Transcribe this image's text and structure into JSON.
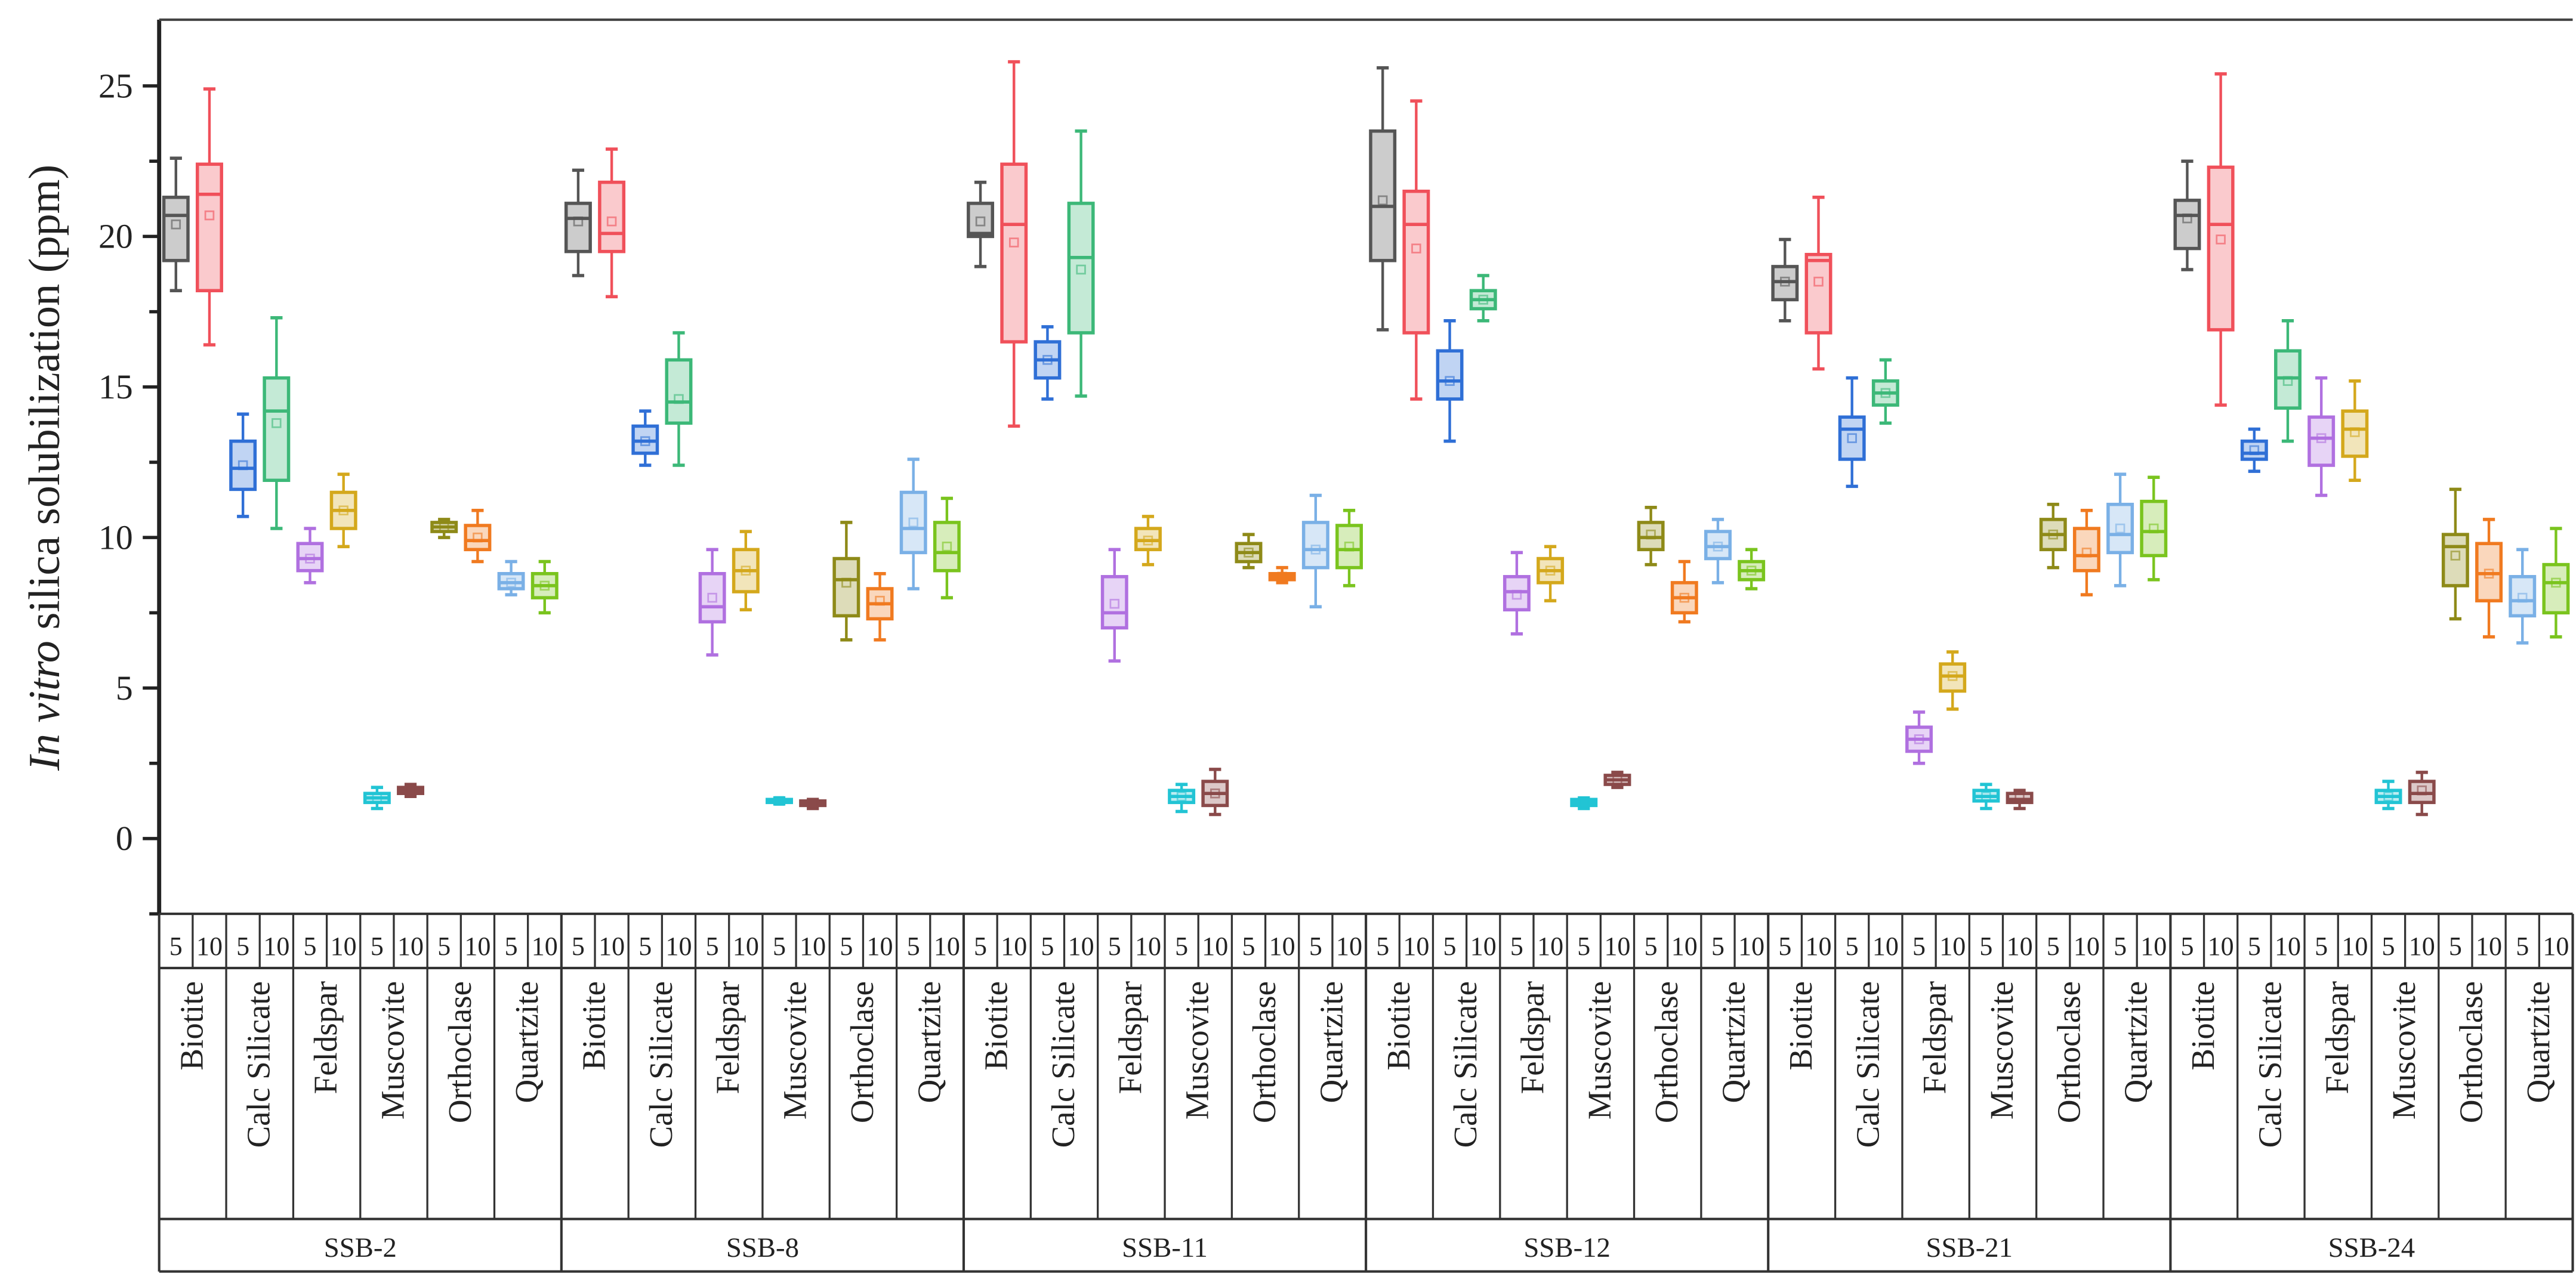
{
  "chart_data": {
    "type": "box",
    "ylabel_italic": "In vitro",
    "ylabel_rest": " silica solubilization (ppm)",
    "ylim": [
      -2.5,
      27.2
    ],
    "yticks": [
      "0",
      "5",
      "10",
      "15",
      "20",
      "25"
    ],
    "ytick_values": [
      0,
      5,
      10,
      15,
      20,
      25
    ],
    "minor_ytick_values": [
      -2.5,
      2.5,
      7.5,
      12.5,
      17.5,
      22.5
    ],
    "minerals": [
      "Biotite",
      "Calc Silicate",
      "Feldspar",
      "Muscovite",
      "Orthoclase",
      "Quartzite"
    ],
    "doses": [
      "5",
      "10"
    ],
    "colors": [
      "#555555",
      "#f0505a",
      "#2f6fd6",
      "#3cb878",
      "#b070e0",
      "#d4a81c",
      "#22c4d4",
      "#8a4a4a",
      "#8e8a18",
      "#f07a20",
      "#7ab0e6",
      "#7ac41e"
    ],
    "box_stat_order": [
      "min",
      "q1",
      "median",
      "q3",
      "max",
      "mean"
    ],
    "groups": [
      {
        "name": "SSB-2",
        "boxes": [
          [
            18.2,
            19.2,
            20.7,
            21.3,
            22.6,
            20.4
          ],
          [
            16.4,
            18.2,
            21.4,
            22.4,
            24.9,
            20.7
          ],
          [
            10.7,
            11.6,
            12.3,
            13.2,
            14.1,
            12.4
          ],
          [
            10.3,
            11.9,
            14.2,
            15.3,
            17.3,
            13.8
          ],
          [
            8.5,
            8.9,
            9.3,
            9.8,
            10.3,
            9.3
          ],
          [
            9.7,
            10.3,
            10.9,
            11.5,
            12.1,
            10.9
          ],
          [
            1.0,
            1.2,
            1.35,
            1.5,
            1.7,
            1.35
          ],
          [
            1.4,
            1.5,
            1.6,
            1.7,
            1.8,
            1.6
          ],
          [
            10.0,
            10.2,
            10.35,
            10.5,
            10.6,
            10.35
          ],
          [
            9.2,
            9.6,
            9.9,
            10.4,
            10.9,
            10.0
          ],
          [
            8.1,
            8.3,
            8.5,
            8.8,
            9.2,
            8.5
          ],
          [
            7.5,
            8.0,
            8.4,
            8.8,
            9.2,
            8.4
          ]
        ]
      },
      {
        "name": "SSB-8",
        "boxes": [
          [
            18.7,
            19.5,
            20.6,
            21.1,
            22.2,
            20.5
          ],
          [
            18.0,
            19.5,
            20.1,
            21.8,
            22.9,
            20.5
          ],
          [
            12.4,
            12.8,
            13.2,
            13.7,
            14.2,
            13.2
          ],
          [
            12.4,
            13.8,
            14.5,
            15.9,
            16.8,
            14.6
          ],
          [
            6.1,
            7.2,
            7.7,
            8.8,
            9.6,
            8.0
          ],
          [
            7.6,
            8.2,
            8.9,
            9.6,
            10.2,
            8.9
          ],
          [
            1.15,
            1.2,
            1.25,
            1.3,
            1.35,
            1.25
          ],
          [
            1.0,
            1.1,
            1.15,
            1.25,
            1.3,
            1.15
          ],
          [
            6.6,
            7.4,
            8.6,
            9.3,
            10.5,
            8.5
          ],
          [
            6.6,
            7.3,
            7.8,
            8.3,
            8.8,
            7.9
          ],
          [
            8.3,
            9.5,
            10.3,
            11.5,
            12.6,
            10.5
          ],
          [
            8.0,
            8.9,
            9.5,
            10.5,
            11.3,
            9.7
          ]
        ]
      },
      {
        "name": "SSB-11",
        "boxes": [
          [
            19.0,
            20.0,
            20.1,
            21.1,
            21.8,
            20.5
          ],
          [
            13.7,
            16.5,
            20.4,
            22.4,
            25.8,
            19.8
          ],
          [
            14.6,
            15.3,
            15.9,
            16.5,
            17.0,
            15.9
          ],
          [
            14.7,
            16.8,
            19.3,
            21.1,
            23.5,
            18.9
          ],
          [
            5.9,
            7.0,
            7.5,
            8.7,
            9.6,
            7.8
          ],
          [
            9.1,
            9.6,
            9.9,
            10.3,
            10.7,
            9.9
          ],
          [
            0.9,
            1.2,
            1.4,
            1.6,
            1.8,
            1.4
          ],
          [
            0.8,
            1.1,
            1.5,
            1.9,
            2.3,
            1.5
          ],
          [
            9.0,
            9.2,
            9.5,
            9.8,
            10.1,
            9.5
          ],
          [
            8.5,
            8.6,
            8.7,
            8.8,
            9.0,
            8.7
          ],
          [
            7.7,
            9.0,
            9.6,
            10.5,
            11.4,
            9.6
          ],
          [
            8.4,
            9.0,
            9.6,
            10.4,
            10.9,
            9.7
          ]
        ]
      },
      {
        "name": "SSB-12",
        "boxes": [
          [
            16.9,
            19.2,
            21.0,
            23.5,
            25.6,
            21.2
          ],
          [
            14.6,
            16.8,
            20.4,
            21.5,
            24.5,
            19.6
          ],
          [
            13.2,
            14.6,
            15.2,
            16.2,
            17.2,
            15.2
          ],
          [
            17.2,
            17.6,
            17.9,
            18.2,
            18.7,
            17.9
          ],
          [
            6.8,
            7.6,
            8.2,
            8.7,
            9.5,
            8.1
          ],
          [
            7.9,
            8.5,
            8.9,
            9.3,
            9.7,
            8.9
          ],
          [
            1.0,
            1.1,
            1.2,
            1.3,
            1.35,
            1.2
          ],
          [
            1.7,
            1.8,
            1.95,
            2.1,
            2.2,
            1.95
          ],
          [
            9.1,
            9.6,
            10.0,
            10.5,
            11.0,
            10.1
          ],
          [
            7.2,
            7.5,
            8.0,
            8.5,
            9.2,
            8.0
          ],
          [
            8.5,
            9.3,
            9.7,
            10.2,
            10.6,
            9.7
          ],
          [
            8.3,
            8.6,
            8.9,
            9.2,
            9.6,
            8.9
          ]
        ]
      },
      {
        "name": "SSB-21",
        "boxes": [
          [
            17.2,
            17.9,
            18.5,
            19.0,
            19.9,
            18.5
          ],
          [
            15.6,
            16.8,
            19.2,
            19.4,
            21.3,
            18.5
          ],
          [
            11.7,
            12.6,
            13.6,
            14.0,
            15.3,
            13.3
          ],
          [
            13.8,
            14.4,
            14.8,
            15.2,
            15.9,
            14.8
          ],
          [
            2.5,
            2.9,
            3.3,
            3.7,
            4.2,
            3.3
          ],
          [
            4.3,
            4.9,
            5.4,
            5.8,
            6.2,
            5.4
          ],
          [
            1.0,
            1.25,
            1.4,
            1.6,
            1.8,
            1.4
          ],
          [
            1.0,
            1.2,
            1.3,
            1.5,
            1.6,
            1.35
          ],
          [
            9.0,
            9.6,
            10.1,
            10.6,
            11.1,
            10.1
          ],
          [
            8.1,
            8.9,
            9.4,
            10.3,
            10.9,
            9.5
          ],
          [
            8.4,
            9.5,
            10.1,
            11.1,
            12.1,
            10.3
          ],
          [
            8.6,
            9.4,
            10.2,
            11.2,
            12.0,
            10.3
          ]
        ]
      },
      {
        "name": "SSB-24",
        "boxes": [
          [
            18.9,
            19.6,
            20.7,
            21.2,
            22.5,
            20.6
          ],
          [
            14.4,
            16.9,
            20.4,
            22.3,
            25.4,
            19.9
          ],
          [
            12.2,
            12.6,
            12.8,
            13.2,
            13.6,
            12.9
          ],
          [
            13.2,
            14.3,
            15.3,
            16.2,
            17.2,
            15.2
          ],
          [
            11.4,
            12.4,
            13.3,
            14.0,
            15.3,
            13.3
          ],
          [
            11.9,
            12.7,
            13.6,
            14.2,
            15.2,
            13.5
          ],
          [
            1.0,
            1.2,
            1.4,
            1.6,
            1.9,
            1.4
          ],
          [
            0.8,
            1.2,
            1.5,
            1.9,
            2.2,
            1.6
          ],
          [
            7.3,
            8.4,
            9.7,
            10.1,
            11.6,
            9.4
          ],
          [
            6.7,
            7.9,
            8.8,
            9.8,
            10.6,
            8.8
          ],
          [
            6.5,
            7.4,
            7.9,
            8.7,
            9.6,
            8.0
          ],
          [
            6.7,
            7.5,
            8.5,
            9.1,
            10.3,
            8.5
          ]
        ]
      }
    ]
  }
}
